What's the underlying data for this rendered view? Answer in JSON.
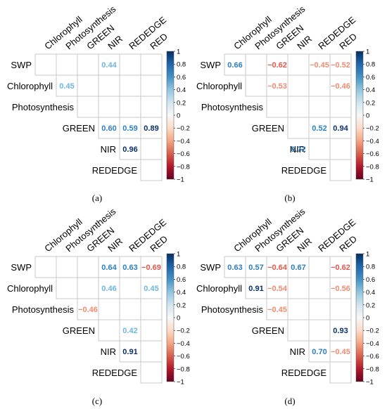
{
  "figure": {
    "variables": [
      "SWP",
      "Chlorophyll",
      "Photosynthesis",
      "GREEN",
      "NIR",
      "REDEDGE",
      "RED"
    ]
  },
  "colorbar": {
    "ticks": [
      "1",
      "0.8",
      "0.6",
      "0.4",
      "0.2",
      "0",
      "−0.2",
      "−0.4",
      "−0.6",
      "−0.8",
      "−1"
    ]
  },
  "colors": {
    "strong_positive": "#08306b",
    "positive": "#2b7fc1",
    "negative": "#e3564a",
    "strong_negative": "#b2182b",
    "grid": "#c8c8c8"
  },
  "chart_data": [
    {
      "type": "heatmap",
      "panel": "(a)",
      "rows": [
        "SWP",
        "Chlorophyll",
        "Photosynthesis",
        "GREEN",
        "NIR",
        "REDEDGE"
      ],
      "columns": [
        "Chlorophyll",
        "Photosynthesis",
        "GREEN",
        "NIR",
        "REDEDGE",
        "RED"
      ],
      "layout": "upper-triangle",
      "zlim": [
        -1,
        1
      ],
      "cells": [
        {
          "row": "SWP",
          "col": "NIR",
          "value": 0.44,
          "label": "0.44"
        },
        {
          "row": "Chlorophyll",
          "col": "Photosynthesis",
          "value": 0.45,
          "label": "0.45"
        },
        {
          "row": "GREEN",
          "col": "NIR",
          "value": 0.6,
          "label": "0.60"
        },
        {
          "row": "GREEN",
          "col": "REDEDGE",
          "value": 0.59,
          "label": "0.59"
        },
        {
          "row": "GREEN",
          "col": "RED",
          "value": 0.89,
          "label": "0.89"
        },
        {
          "row": "NIR",
          "col": "REDEDGE",
          "value": 0.96,
          "label": "0.96"
        }
      ]
    },
    {
      "type": "heatmap",
      "panel": "(b)",
      "rows": [
        "SWP",
        "Chlorophyll",
        "Photosynthesis",
        "GREEN",
        "NIR",
        "REDEDGE"
      ],
      "columns": [
        "Chlorophyll",
        "Photosynthesis",
        "GREEN",
        "NIR",
        "REDEDGE",
        "RED"
      ],
      "layout": "upper-triangle",
      "zlim": [
        -1,
        1
      ],
      "cells": [
        {
          "row": "SWP",
          "col": "Chlorophyll",
          "value": 0.66,
          "label": "0.66"
        },
        {
          "row": "SWP",
          "col": "GREEN",
          "value": -0.62,
          "label": "−0.62"
        },
        {
          "row": "SWP",
          "col": "REDEDGE",
          "value": -0.45,
          "label": "−0.45"
        },
        {
          "row": "SWP",
          "col": "RED",
          "value": -0.52,
          "label": "−0.52"
        },
        {
          "row": "Chlorophyll",
          "col": "GREEN",
          "value": -0.53,
          "label": "−0.53"
        },
        {
          "row": "Chlorophyll",
          "col": "RED",
          "value": -0.46,
          "label": "−0.46"
        },
        {
          "row": "GREEN",
          "col": "REDEDGE",
          "value": 0.52,
          "label": "0.52"
        },
        {
          "row": "GREEN",
          "col": "RED",
          "value": 0.94,
          "label": "0.94"
        },
        {
          "row": "NIR",
          "col": "NIR",
          "value": 0.72,
          "label": "0.72"
        }
      ]
    },
    {
      "type": "heatmap",
      "panel": "(c)",
      "rows": [
        "SWP",
        "Chlorophyll",
        "Photosynthesis",
        "GREEN",
        "NIR",
        "REDEDGE"
      ],
      "columns": [
        "Chlorophyll",
        "Photosynthesis",
        "GREEN",
        "NIR",
        "REDEDGE",
        "RED"
      ],
      "layout": "upper-triangle",
      "zlim": [
        -1,
        1
      ],
      "cells": [
        {
          "row": "SWP",
          "col": "NIR",
          "value": 0.64,
          "label": "0.64"
        },
        {
          "row": "SWP",
          "col": "REDEDGE",
          "value": 0.63,
          "label": "0.63"
        },
        {
          "row": "SWP",
          "col": "RED",
          "value": -0.69,
          "label": "−0.69"
        },
        {
          "row": "Chlorophyll",
          "col": "NIR",
          "value": 0.46,
          "label": "0.46"
        },
        {
          "row": "Chlorophyll",
          "col": "RED",
          "value": 0.45,
          "label": "0.45"
        },
        {
          "row": "Photosynthesis",
          "col": "GREEN",
          "value": -0.46,
          "label": "−0.46"
        },
        {
          "row": "GREEN",
          "col": "REDEDGE",
          "value": 0.42,
          "label": "0.42"
        },
        {
          "row": "NIR",
          "col": "REDEDGE",
          "value": 0.91,
          "label": "0.91"
        }
      ]
    },
    {
      "type": "heatmap",
      "panel": "(d)",
      "rows": [
        "SWP",
        "Chlorophyll",
        "Photosynthesis",
        "GREEN",
        "NIR",
        "REDEDGE"
      ],
      "columns": [
        "Chlorophyll",
        "Photosynthesis",
        "GREEN",
        "NIR",
        "REDEDGE",
        "RED"
      ],
      "layout": "upper-triangle",
      "zlim": [
        -1,
        1
      ],
      "cells": [
        {
          "row": "SWP",
          "col": "Chlorophyll",
          "value": 0.63,
          "label": "0.63"
        },
        {
          "row": "SWP",
          "col": "Photosynthesis",
          "value": 0.57,
          "label": "0.57"
        },
        {
          "row": "SWP",
          "col": "GREEN",
          "value": -0.64,
          "label": "−0.64"
        },
        {
          "row": "SWP",
          "col": "NIR",
          "value": 0.67,
          "label": "0.67"
        },
        {
          "row": "SWP",
          "col": "RED",
          "value": -0.62,
          "label": "−0.62"
        },
        {
          "row": "Chlorophyll",
          "col": "Photosynthesis",
          "value": 0.91,
          "label": "0.91"
        },
        {
          "row": "Chlorophyll",
          "col": "GREEN",
          "value": -0.54,
          "label": "−0.54"
        },
        {
          "row": "Chlorophyll",
          "col": "RED",
          "value": -0.56,
          "label": "−0.56"
        },
        {
          "row": "Photosynthesis",
          "col": "GREEN",
          "value": -0.45,
          "label": "−0.45"
        },
        {
          "row": "GREEN",
          "col": "RED",
          "value": 0.93,
          "label": "0.93"
        },
        {
          "row": "NIR",
          "col": "REDEDGE",
          "value": 0.7,
          "label": "0.70"
        },
        {
          "row": "NIR",
          "col": "RED",
          "value": -0.45,
          "label": "−0.45"
        }
      ]
    }
  ]
}
